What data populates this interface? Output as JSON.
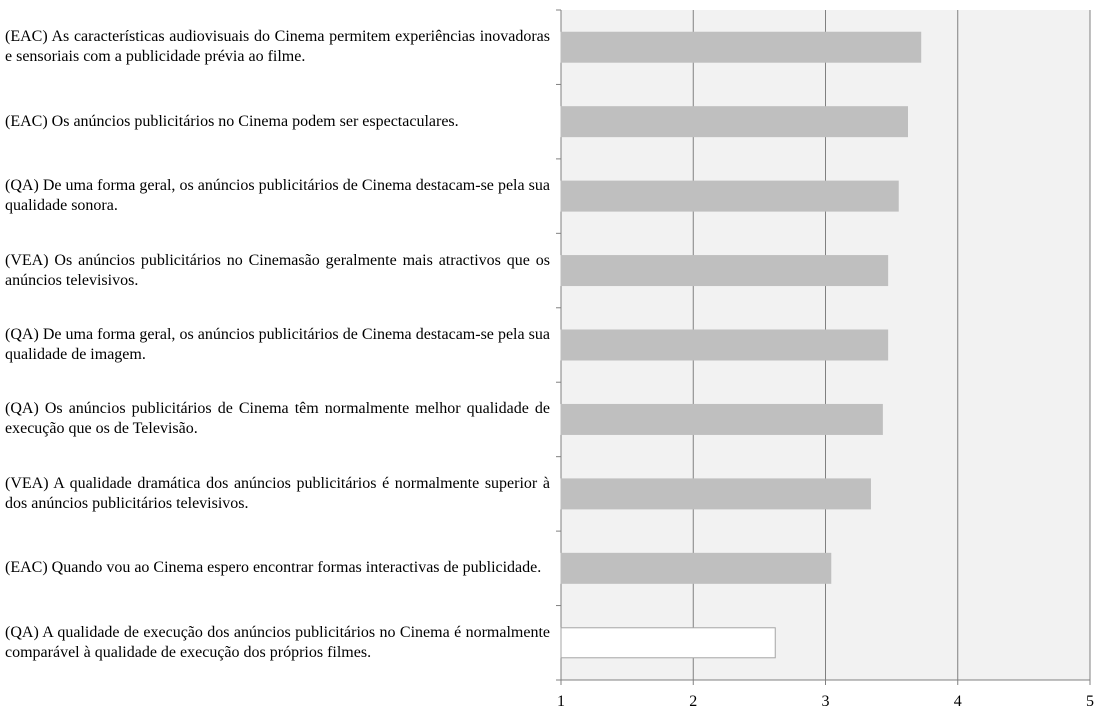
{
  "chart_data": {
    "type": "barh",
    "categories": [
      "(EAC) As características audiovisuais do Cinema permitem experiências inovadoras e sensoriais com a publicidade prévia ao filme.",
      "(EAC) Os anúncios publicitários no Cinema podem ser espectaculares.",
      "(QA) De uma forma geral, os anúncios publicitários de Cinema destacam-se pela sua qualidade sonora.",
      "(VEA) Os anúncios publicitários no Cinemasão geralmente mais atractivos que os anúncios televisivos.",
      "(QA) De uma forma geral, os anúncios publicitários de Cinema destacam-se pela sua qualidade de imagem.",
      "(QA) Os anúncios publicitários de Cinema têm normalmente melhor qualidade de execução que os de Televisão.",
      "(VEA) A qualidade dramática dos anúncios publicitários é normalmente superior à dos anúncios publicitários televisivos.",
      "(EAC) Quando vou ao Cinema espero encontrar formas interactivas de publicidade.",
      "(QA) A qualidade de execução dos anúncios publicitários no Cinema é normalmente comparável à qualidade de execução dos próprios filmes."
    ],
    "values": [
      3.72,
      3.62,
      3.55,
      3.47,
      3.47,
      3.43,
      3.34,
      3.04,
      2.62
    ],
    "colors": [
      "#bfbfbf",
      "#bfbfbf",
      "#bfbfbf",
      "#bfbfbf",
      "#bfbfbf",
      "#bfbfbf",
      "#bfbfbf",
      "#bfbfbf",
      "#ffffff"
    ],
    "edgecolors": [
      "#bfbfbf",
      "#bfbfbf",
      "#bfbfbf",
      "#bfbfbf",
      "#bfbfbf",
      "#bfbfbf",
      "#bfbfbf",
      "#bfbfbf",
      "#a6a6a6"
    ],
    "xlim": [
      1,
      5
    ],
    "xticks": [
      1,
      2,
      3,
      4,
      5
    ],
    "grid": true
  }
}
